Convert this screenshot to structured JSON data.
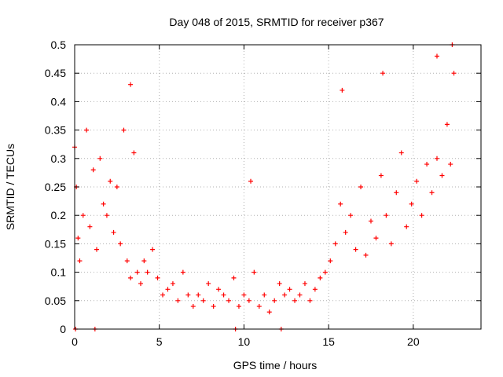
{
  "chart_data": {
    "type": "scatter",
    "title": "Day 048 of 2015, SRMTID for receiver p367",
    "xlabel": "GPS time / hours",
    "ylabel": "SRMTID / TECUs",
    "xlim": [
      0,
      24
    ],
    "ylim": [
      0,
      0.5
    ],
    "xticks": [
      0,
      5,
      10,
      15,
      20
    ],
    "xtick_labels": [
      "0",
      "5",
      "10",
      "15",
      "20"
    ],
    "yticks": [
      0,
      0.05,
      0.1,
      0.15,
      0.2,
      0.25,
      0.3,
      0.35,
      0.4,
      0.45,
      0.5
    ],
    "ytick_labels": [
      "0",
      "0.05",
      "0.1",
      "0.15",
      "0.2",
      "0.25",
      "0.3",
      "0.35",
      "0.4",
      "0.45",
      "0.5"
    ],
    "grid": true,
    "marker": "+",
    "series": [
      {
        "name": "SRMTID",
        "color": "#ff0000",
        "x": [
          0.0,
          0.1,
          0.2,
          0.3,
          0.5,
          0.7,
          0.9,
          1.1,
          1.3,
          1.5,
          1.7,
          1.9,
          2.1,
          2.3,
          2.5,
          2.7,
          2.9,
          3.1,
          3.3,
          3.5,
          3.7,
          3.9,
          4.1,
          4.3,
          4.6,
          4.9,
          5.2,
          5.5,
          5.8,
          6.1,
          6.4,
          6.7,
          7.0,
          7.3,
          7.6,
          7.9,
          8.2,
          8.5,
          8.8,
          9.1,
          9.4,
          9.7,
          10.0,
          10.3,
          10.6,
          10.9,
          11.2,
          11.5,
          11.8,
          12.1,
          12.4,
          12.7,
          13.0,
          13.3,
          13.6,
          13.9,
          14.2,
          14.5,
          14.8,
          15.1,
          15.4,
          15.7,
          16.0,
          16.3,
          16.6,
          16.9,
          17.2,
          17.5,
          17.8,
          18.1,
          18.4,
          18.7,
          19.0,
          19.3,
          19.6,
          19.9,
          20.2,
          20.5,
          20.8,
          21.1,
          21.4,
          21.7,
          22.0,
          22.2,
          22.4,
          0.05,
          1.2,
          9.5,
          12.2,
          3.3,
          10.4,
          15.8,
          18.2,
          21.4,
          22.3
        ],
        "y": [
          0.32,
          0.25,
          0.16,
          0.12,
          0.2,
          0.35,
          0.18,
          0.28,
          0.14,
          0.3,
          0.22,
          0.2,
          0.26,
          0.17,
          0.25,
          0.15,
          0.35,
          0.12,
          0.09,
          0.31,
          0.1,
          0.08,
          0.12,
          0.1,
          0.14,
          0.09,
          0.06,
          0.07,
          0.08,
          0.05,
          0.1,
          0.06,
          0.04,
          0.06,
          0.05,
          0.08,
          0.04,
          0.07,
          0.06,
          0.05,
          0.09,
          0.04,
          0.06,
          0.05,
          0.1,
          0.04,
          0.06,
          0.03,
          0.05,
          0.08,
          0.06,
          0.07,
          0.05,
          0.06,
          0.08,
          0.05,
          0.07,
          0.09,
          0.1,
          0.12,
          0.15,
          0.22,
          0.17,
          0.2,
          0.14,
          0.25,
          0.13,
          0.19,
          0.16,
          0.27,
          0.2,
          0.15,
          0.24,
          0.31,
          0.18,
          0.22,
          0.26,
          0.2,
          0.29,
          0.24,
          0.3,
          0.27,
          0.36,
          0.29,
          0.45,
          0.0,
          0.0,
          0.0,
          0.0,
          0.43,
          0.26,
          0.42,
          0.45,
          0.48,
          0.5
        ]
      }
    ]
  }
}
